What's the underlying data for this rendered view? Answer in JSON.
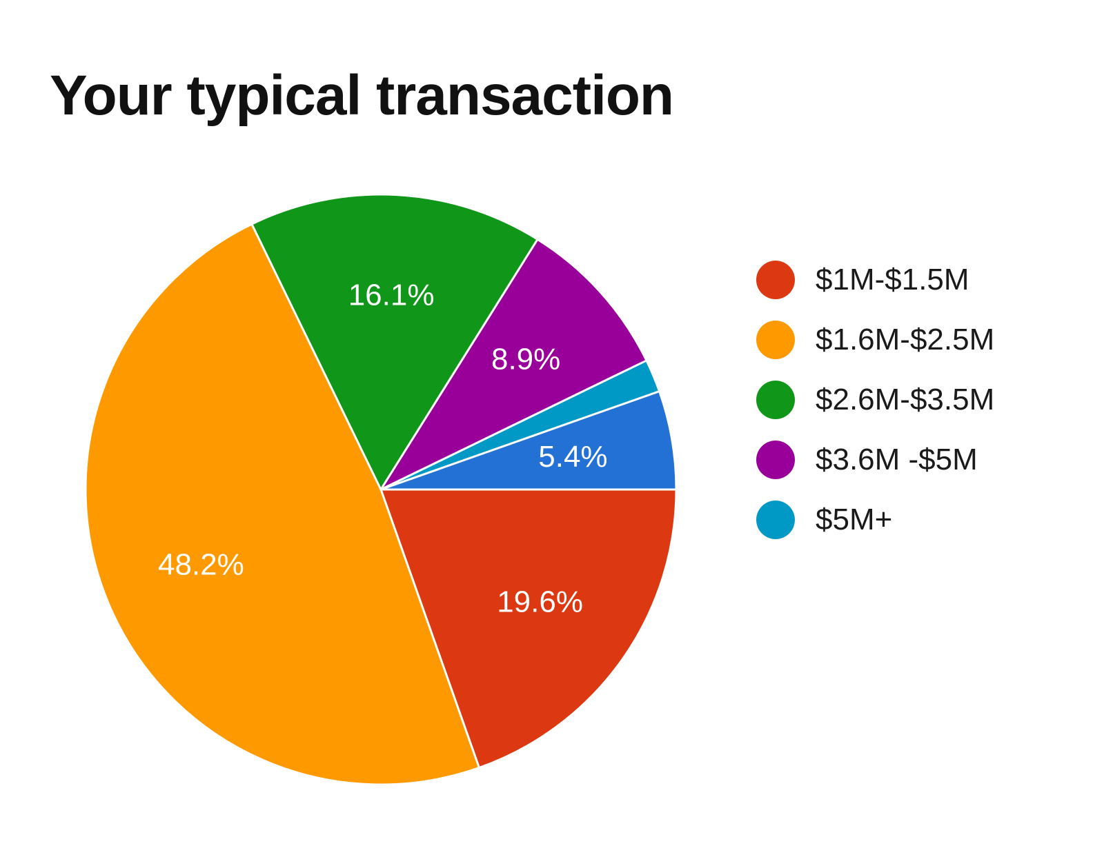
{
  "chart_data": {
    "type": "pie",
    "title": "Your typical transaction",
    "categories": [
      "$1M-$1.5M",
      "$1.6M-$2.5M",
      "$2.6M-$3.5M",
      "$3.6M -$5M",
      "$5M+",
      ""
    ],
    "values": [
      19.6,
      48.2,
      16.1,
      8.9,
      1.8,
      5.4
    ],
    "value_labels": [
      "19.6%",
      "48.2%",
      "16.1%",
      "8.9%",
      "",
      "5.4%"
    ],
    "colors": [
      "#DC3912",
      "#FF9900",
      "#109618",
      "#990099",
      "#0099C6",
      "#2471D6"
    ],
    "legend": {
      "placement": "right",
      "entries": [
        {
          "label": "$1M-$1.5M",
          "color": "#DC3912"
        },
        {
          "label": "$1.6M-$2.5M",
          "color": "#FF9900"
        },
        {
          "label": "$2.6M-$3.5M",
          "color": "#109618"
        },
        {
          "label": "$3.6M -$5M",
          "color": "#990099"
        },
        {
          "label": "$5M+",
          "color": "#0099C6"
        }
      ]
    }
  }
}
